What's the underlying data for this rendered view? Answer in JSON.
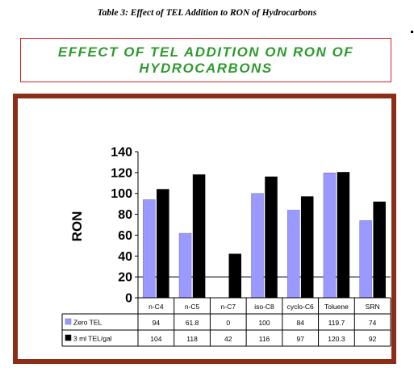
{
  "caption": "Table 3: Effect of TEL Addition to RON of Hydrocarbons",
  "banner": {
    "line1": "EFFECT OF TEL ADDITION ON RON OF",
    "line2": "HYDROCARBONS",
    "text_color": "#2e9a2e",
    "border_color": "#d62020"
  },
  "frame_color": "#8b2d17",
  "chart_data": {
    "type": "bar",
    "title": "",
    "xlabel": "",
    "ylabel": "RON",
    "ylim": [
      0,
      140
    ],
    "yticks": [
      0,
      20,
      40,
      60,
      80,
      100,
      120,
      140
    ],
    "reference_line": 20,
    "grid": false,
    "legend": "data-table-left",
    "categories": [
      "n-C4",
      "n-C5",
      "n-C7",
      "iso-C8",
      "cyclo-C6",
      "Toluene",
      "SRN"
    ],
    "series": [
      {
        "name": "Zero TEL",
        "color": "#9999ff",
        "labels": [
          "94",
          "61.8",
          "0",
          "100",
          "84",
          "119.7",
          "74"
        ],
        "values": [
          94,
          61.8,
          0,
          100,
          84,
          119.7,
          74
        ]
      },
      {
        "name": "3 ml TEL/gal",
        "color": "#000000",
        "labels": [
          "104",
          "118",
          "42",
          "116",
          "97",
          "120.3",
          "92"
        ],
        "values": [
          104,
          118,
          42,
          116,
          97,
          120.3,
          92
        ]
      }
    ]
  }
}
